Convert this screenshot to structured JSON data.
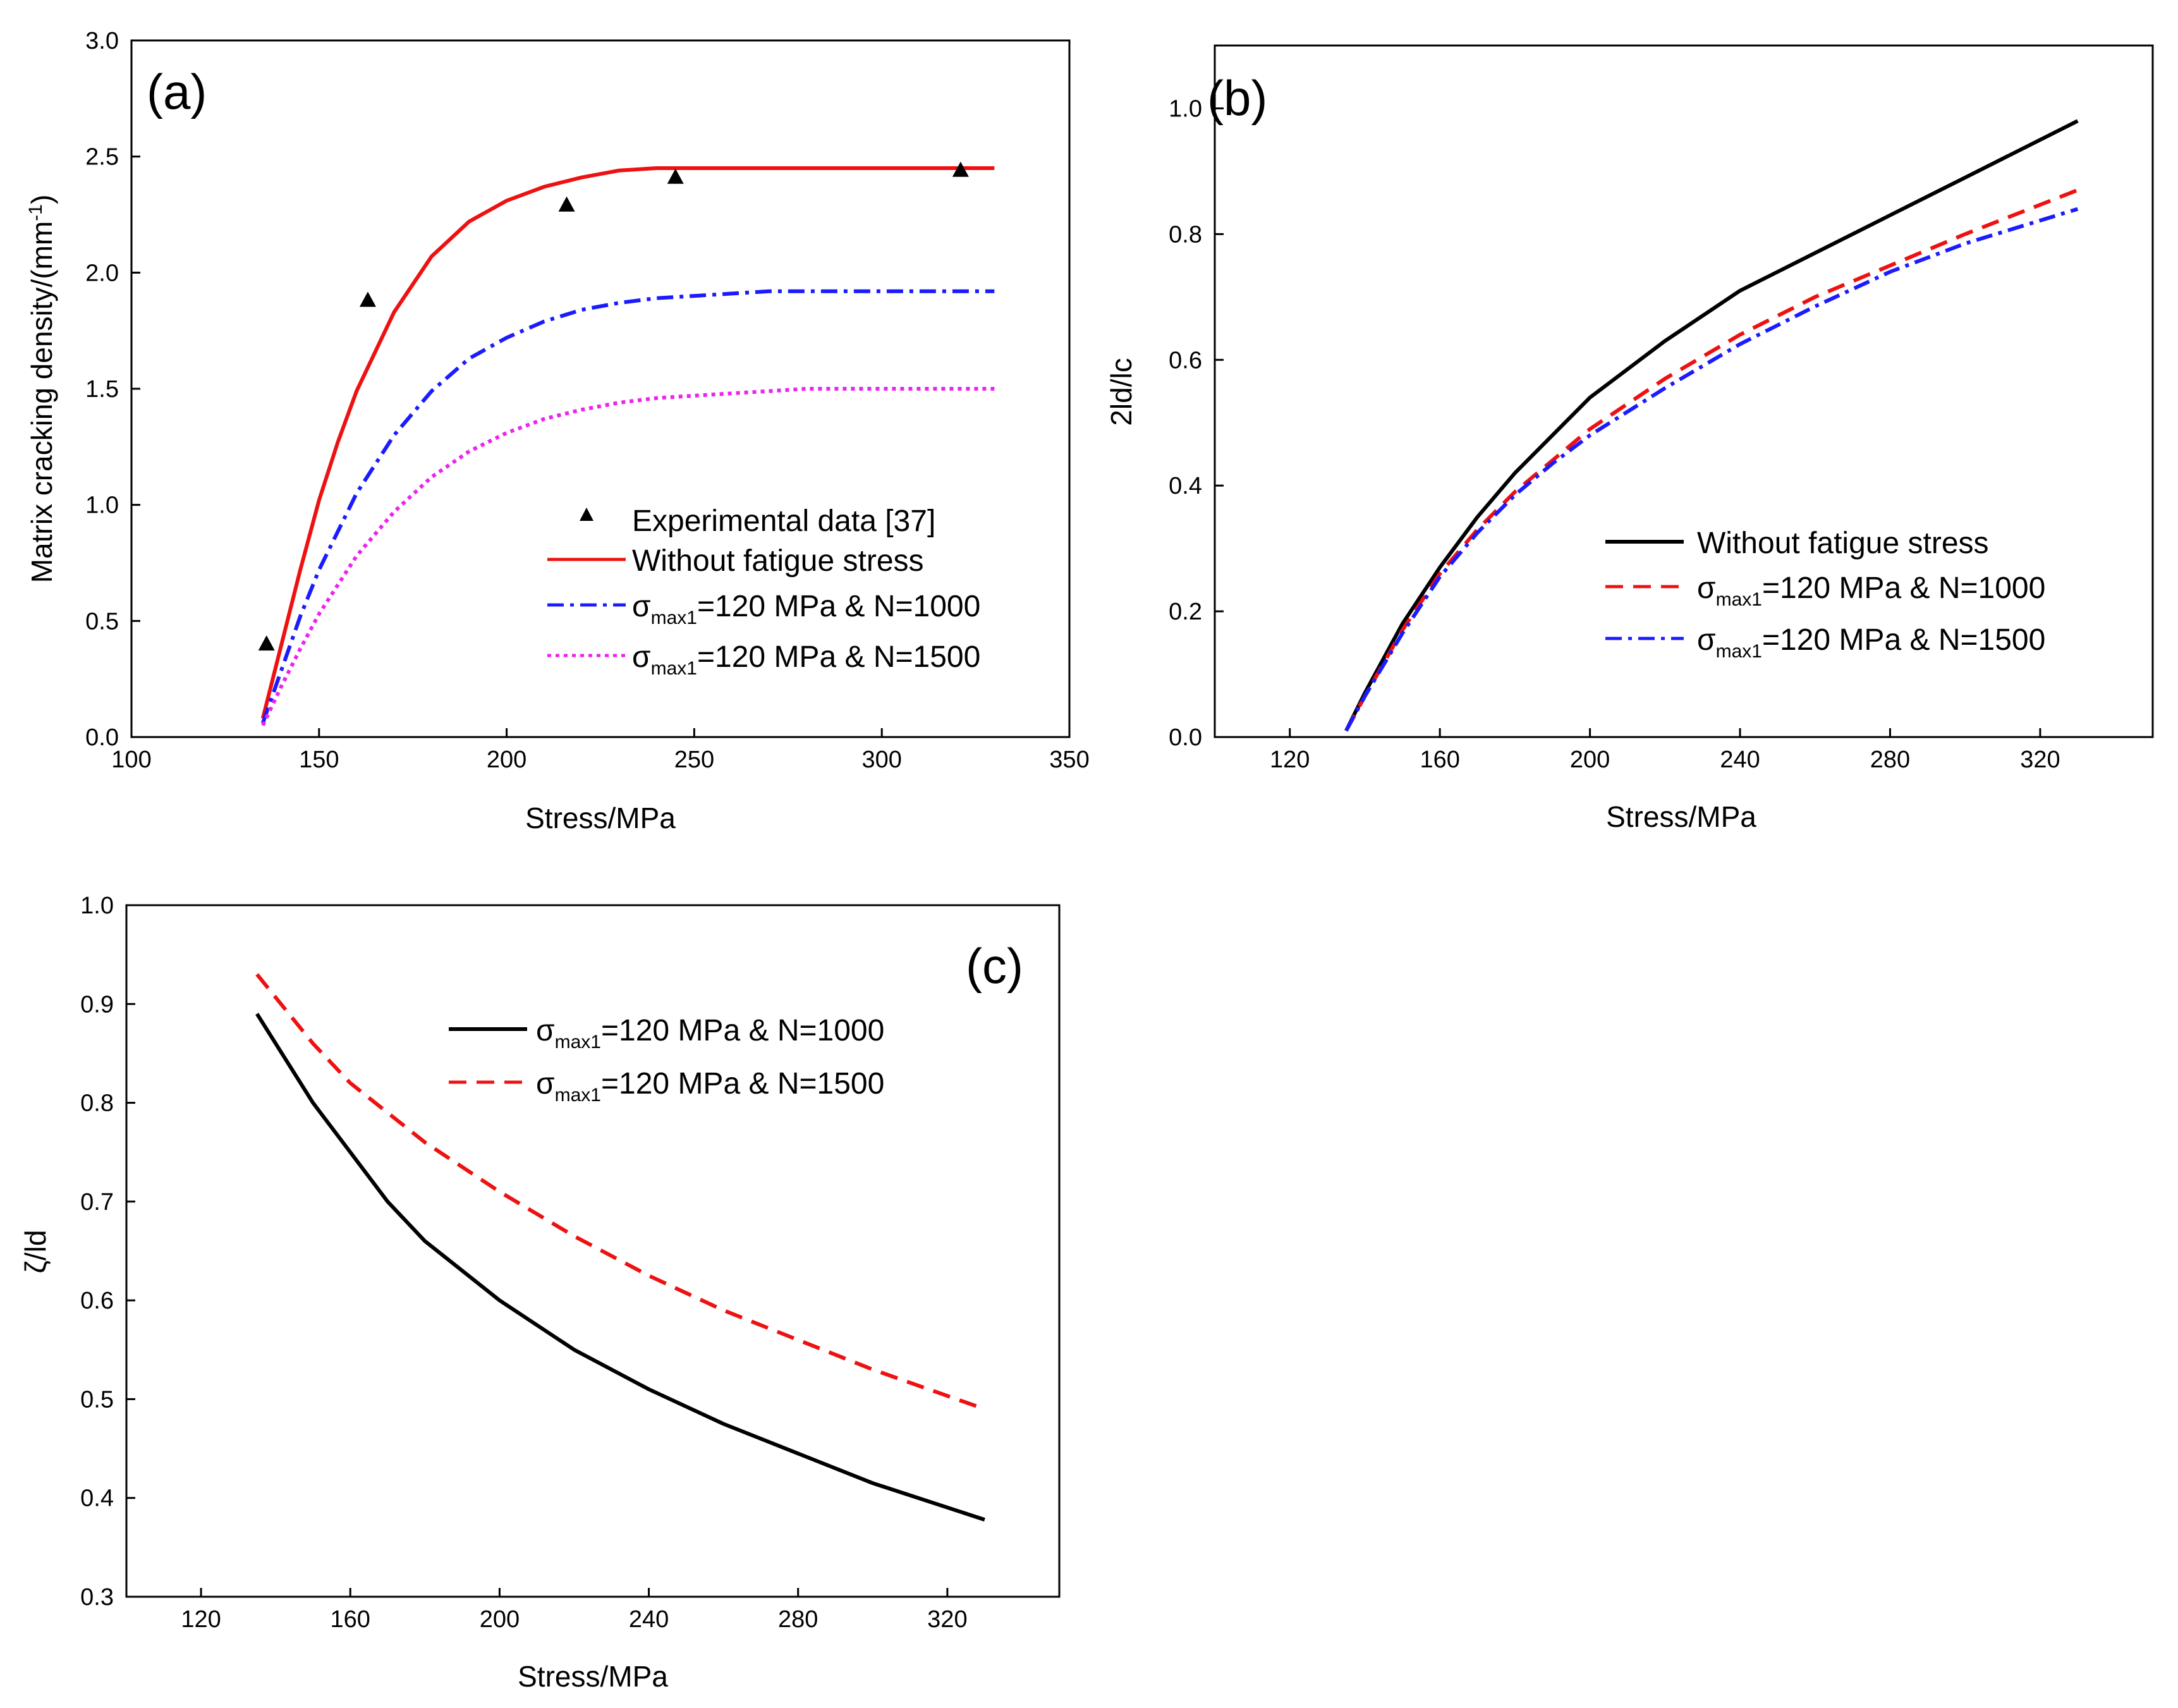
{
  "figure": {
    "description_label": "Three-panel scientific figure"
  },
  "chart_data": [
    {
      "id": "a",
      "type": "line",
      "panel_label": "(a)",
      "xlabel": "Stress/MPa",
      "ylabel_main": "Matrix cracking density/(mm",
      "ylabel_sup": "-1",
      "ylabel_end": ")",
      "xlim": [
        100,
        350
      ],
      "ylim": [
        0.0,
        3.0
      ],
      "xticks": [
        100,
        150,
        200,
        250,
        300,
        350
      ],
      "yticks": [
        "0.0",
        "0.5",
        "1.0",
        "1.5",
        "2.0",
        "2.5",
        "3.0"
      ],
      "legend_position": "bottom-right",
      "scatter": {
        "name": "Experimental data [37]",
        "marker": "triangle",
        "color": "#000000",
        "points": [
          [
            136,
            0.4
          ],
          [
            163,
            1.88
          ],
          [
            216,
            2.29
          ],
          [
            245,
            2.41
          ],
          [
            321,
            2.44
          ]
        ]
      },
      "series": [
        {
          "name": "Without fatigue stress",
          "style": "solid",
          "color": "#ee1111",
          "points": [
            [
              135,
              0.08
            ],
            [
              140,
              0.4
            ],
            [
              145,
              0.72
            ],
            [
              150,
              1.02
            ],
            [
              155,
              1.27
            ],
            [
              160,
              1.49
            ],
            [
              170,
              1.83
            ],
            [
              180,
              2.07
            ],
            [
              190,
              2.22
            ],
            [
              200,
              2.31
            ],
            [
              210,
              2.37
            ],
            [
              220,
              2.41
            ],
            [
              230,
              2.44
            ],
            [
              240,
              2.45
            ],
            [
              250,
              2.45
            ],
            [
              270,
              2.45
            ],
            [
              300,
              2.45
            ],
            [
              330,
              2.45
            ]
          ]
        },
        {
          "name_pre": "σ",
          "name_sub": "max1",
          "name_post": "=120 MPa & N=1000",
          "style": "dashdot",
          "color": "#1b1bff",
          "points": [
            [
              135,
              0.06
            ],
            [
              140,
              0.29
            ],
            [
              145,
              0.52
            ],
            [
              150,
              0.72
            ],
            [
              160,
              1.05
            ],
            [
              170,
              1.3
            ],
            [
              180,
              1.49
            ],
            [
              190,
              1.63
            ],
            [
              200,
              1.72
            ],
            [
              210,
              1.79
            ],
            [
              220,
              1.84
            ],
            [
              230,
              1.87
            ],
            [
              240,
              1.89
            ],
            [
              250,
              1.9
            ],
            [
              260,
              1.91
            ],
            [
              270,
              1.92
            ],
            [
              300,
              1.92
            ],
            [
              330,
              1.92
            ]
          ]
        },
        {
          "name_pre": "σ",
          "name_sub": "max1",
          "name_post": "=120 MPa & N=1500",
          "style": "dotted",
          "color": "#ee22ee",
          "points": [
            [
              135,
              0.05
            ],
            [
              140,
              0.22
            ],
            [
              145,
              0.38
            ],
            [
              150,
              0.53
            ],
            [
              160,
              0.78
            ],
            [
              170,
              0.97
            ],
            [
              180,
              1.12
            ],
            [
              190,
              1.23
            ],
            [
              200,
              1.31
            ],
            [
              210,
              1.37
            ],
            [
              220,
              1.41
            ],
            [
              230,
              1.44
            ],
            [
              240,
              1.46
            ],
            [
              250,
              1.47
            ],
            [
              260,
              1.48
            ],
            [
              270,
              1.49
            ],
            [
              280,
              1.5
            ],
            [
              300,
              1.5
            ],
            [
              330,
              1.5
            ]
          ]
        }
      ]
    },
    {
      "id": "b",
      "type": "line",
      "panel_label": "(b)",
      "xlabel": "Stress/MPa",
      "ylabel_main": "2ld/lc",
      "xlim": [
        100,
        350
      ],
      "ylim": [
        0.0,
        1.1
      ],
      "xticks": [
        120,
        160,
        200,
        240,
        280,
        320
      ],
      "yticks": [
        "0.0",
        "0.2",
        "0.4",
        "0.6",
        "0.8",
        "1.0"
      ],
      "legend_position": "bottom-right",
      "series": [
        {
          "name": "Without fatigue stress",
          "style": "solid",
          "color": "#000000",
          "points": [
            [
              135,
              0.01
            ],
            [
              140,
              0.07
            ],
            [
              150,
              0.18
            ],
            [
              160,
              0.27
            ],
            [
              170,
              0.35
            ],
            [
              180,
              0.42
            ],
            [
              190,
              0.48
            ],
            [
              200,
              0.54
            ],
            [
              220,
              0.63
            ],
            [
              240,
              0.71
            ],
            [
              260,
              0.77
            ],
            [
              280,
              0.83
            ],
            [
              300,
              0.89
            ],
            [
              330,
              0.98
            ]
          ]
        },
        {
          "name_pre": "σ",
          "name_sub": "max1",
          "name_post": "=120 MPa & N=1000",
          "style": "dashed",
          "color": "#ee1111",
          "points": [
            [
              135,
              0.01
            ],
            [
              140,
              0.065
            ],
            [
              150,
              0.17
            ],
            [
              160,
              0.26
            ],
            [
              170,
              0.33
            ],
            [
              180,
              0.39
            ],
            [
              190,
              0.44
            ],
            [
              200,
              0.49
            ],
            [
              220,
              0.57
            ],
            [
              240,
              0.64
            ],
            [
              260,
              0.7
            ],
            [
              280,
              0.75
            ],
            [
              300,
              0.8
            ],
            [
              330,
              0.87
            ]
          ]
        },
        {
          "name_pre": "σ",
          "name_sub": "max1",
          "name_post": "=120 MPa & N=1500",
          "style": "dashdot",
          "color": "#1b1bff",
          "points": [
            [
              135,
              0.01
            ],
            [
              140,
              0.065
            ],
            [
              150,
              0.165
            ],
            [
              160,
              0.255
            ],
            [
              170,
              0.325
            ],
            [
              180,
              0.385
            ],
            [
              190,
              0.435
            ],
            [
              200,
              0.48
            ],
            [
              220,
              0.555
            ],
            [
              240,
              0.625
            ],
            [
              260,
              0.685
            ],
            [
              280,
              0.74
            ],
            [
              300,
              0.785
            ],
            [
              330,
              0.84
            ]
          ]
        }
      ]
    },
    {
      "id": "c",
      "type": "line",
      "panel_label": "(c)",
      "xlabel": "Stress/MPa",
      "ylabel_main": "ζ/ld",
      "xlim": [
        100,
        350
      ],
      "ylim": [
        0.3,
        1.0
      ],
      "xticks": [
        120,
        160,
        200,
        240,
        280,
        320
      ],
      "yticks": [
        "0.3",
        "0.4",
        "0.5",
        "0.6",
        "0.7",
        "0.8",
        "0.9",
        "1.0"
      ],
      "legend_position": "upper-right",
      "series": [
        {
          "name_pre": "σ",
          "name_sub": "max1",
          "name_post": "=120 MPa & N=1000",
          "style": "solid",
          "color": "#000000",
          "points": [
            [
              135,
              0.89
            ],
            [
              150,
              0.8
            ],
            [
              160,
              0.75
            ],
            [
              170,
              0.7
            ],
            [
              180,
              0.66
            ],
            [
              200,
              0.6
            ],
            [
              220,
              0.55
            ],
            [
              240,
              0.51
            ],
            [
              260,
              0.475
            ],
            [
              280,
              0.445
            ],
            [
              300,
              0.415
            ],
            [
              330,
              0.378
            ]
          ]
        },
        {
          "name_pre": "σ",
          "name_sub": "max1",
          "name_post": "=120 MPa & N=1500",
          "style": "dashed",
          "color": "#ee1111",
          "points": [
            [
              135,
              0.93
            ],
            [
              150,
              0.86
            ],
            [
              160,
              0.82
            ],
            [
              180,
              0.76
            ],
            [
              200,
              0.71
            ],
            [
              220,
              0.665
            ],
            [
              240,
              0.625
            ],
            [
              260,
              0.59
            ],
            [
              280,
              0.56
            ],
            [
              300,
              0.53
            ],
            [
              330,
              0.49
            ]
          ]
        }
      ]
    }
  ]
}
